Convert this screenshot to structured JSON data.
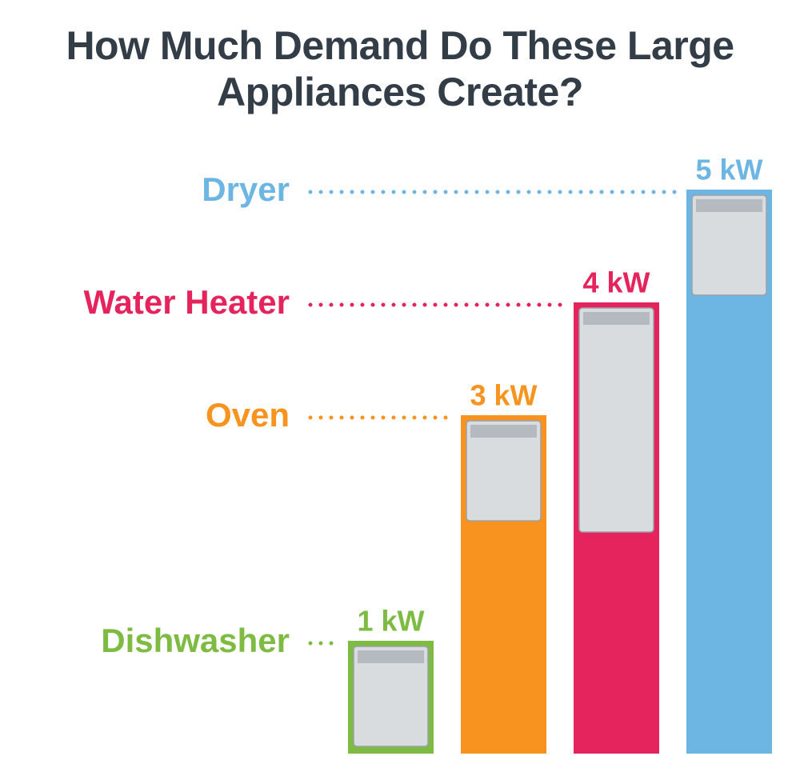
{
  "chart_data": {
    "type": "bar",
    "title": "How Much Demand Do These Large Appliances Create?",
    "categories": [
      "Dishwasher",
      "Oven",
      "Water Heater",
      "Dryer"
    ],
    "values": [
      1,
      3,
      4,
      5
    ],
    "value_labels": [
      "1 kW",
      "3 kW",
      "4 kW",
      "5 kW"
    ],
    "colors": [
      "#7dbb42",
      "#f7931e",
      "#e5245e",
      "#6db6e3"
    ]
  }
}
